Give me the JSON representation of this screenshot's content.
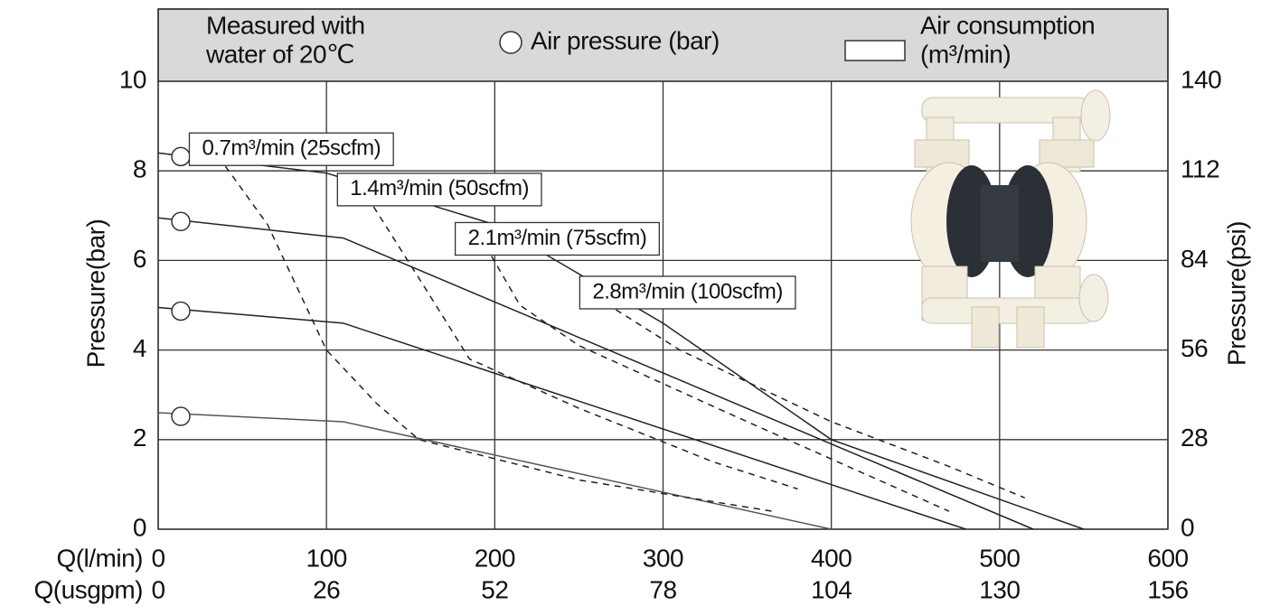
{
  "chart_data": {
    "type": "line",
    "header_note": [
      "Measured with",
      "water of 20℃"
    ],
    "legend_pressure": "Air pressure (bar)",
    "legend_consumption": [
      "Air consumption",
      "(m³/min)"
    ],
    "y_label": "Pressure(bar)",
    "y2_label": "Pressure(psi)",
    "x_label": "Q(l/min)",
    "x2_label": "Q(usgpm)",
    "xlim": [
      0,
      600
    ],
    "xticks": [
      0,
      100,
      200,
      300,
      400,
      500,
      600
    ],
    "x2lim": [
      0,
      156
    ],
    "x2ticks": [
      0,
      26,
      52,
      78,
      104,
      130,
      156
    ],
    "ylim": [
      0,
      10
    ],
    "yticks": [
      0,
      2,
      4,
      6,
      8,
      10
    ],
    "y2lim": [
      0,
      140
    ],
    "y2ticks": [
      0,
      28,
      56,
      84,
      112,
      140
    ],
    "grid": true,
    "series": [
      {
        "color": "#222222",
        "style": "solid",
        "x": [
          0,
          100,
          200,
          300,
          400,
          550
        ],
        "values": [
          8.4,
          7.95,
          6.8,
          4.6,
          2.0,
          0
        ]
      },
      {
        "color": "#222222",
        "style": "solid",
        "x": [
          0,
          110,
          520
        ],
        "values": [
          6.95,
          6.5,
          0
        ]
      },
      {
        "color": "#222222",
        "style": "solid",
        "x": [
          0,
          110,
          480
        ],
        "values": [
          4.95,
          4.6,
          0
        ]
      },
      {
        "color": "#555555",
        "style": "solid",
        "x": [
          0,
          110,
          400
        ],
        "values": [
          2.6,
          2.4,
          0
        ]
      },
      {
        "name": "0.7m³/min (25scfm)",
        "color": "#222222",
        "style": "dashed",
        "x": [
          40,
          65,
          100,
          130,
          155,
          250,
          365
        ],
        "values": [
          8.1,
          6.8,
          4.0,
          2.8,
          2.0,
          1.1,
          0.4
        ]
      },
      {
        "name": "1.4m³/min (50scfm)",
        "color": "#222222",
        "style": "dashed",
        "x": [
          128,
          155,
          185,
          250,
          330,
          380
        ],
        "values": [
          7.2,
          5.6,
          3.8,
          2.7,
          1.5,
          0.9
        ]
      },
      {
        "name": "2.1m³/min (75scfm)",
        "color": "#222222",
        "style": "dashed",
        "x": [
          198,
          215,
          250,
          350,
          470
        ],
        "values": [
          6.1,
          5.0,
          4.1,
          2.4,
          0.4
        ]
      },
      {
        "name": "2.8m³/min (100scfm)",
        "color": "#222222",
        "style": "dashed",
        "x": [
          272,
          310,
          400,
          470,
          515
        ],
        "values": [
          4.9,
          4.0,
          2.4,
          1.4,
          0.7
        ]
      }
    ]
  }
}
